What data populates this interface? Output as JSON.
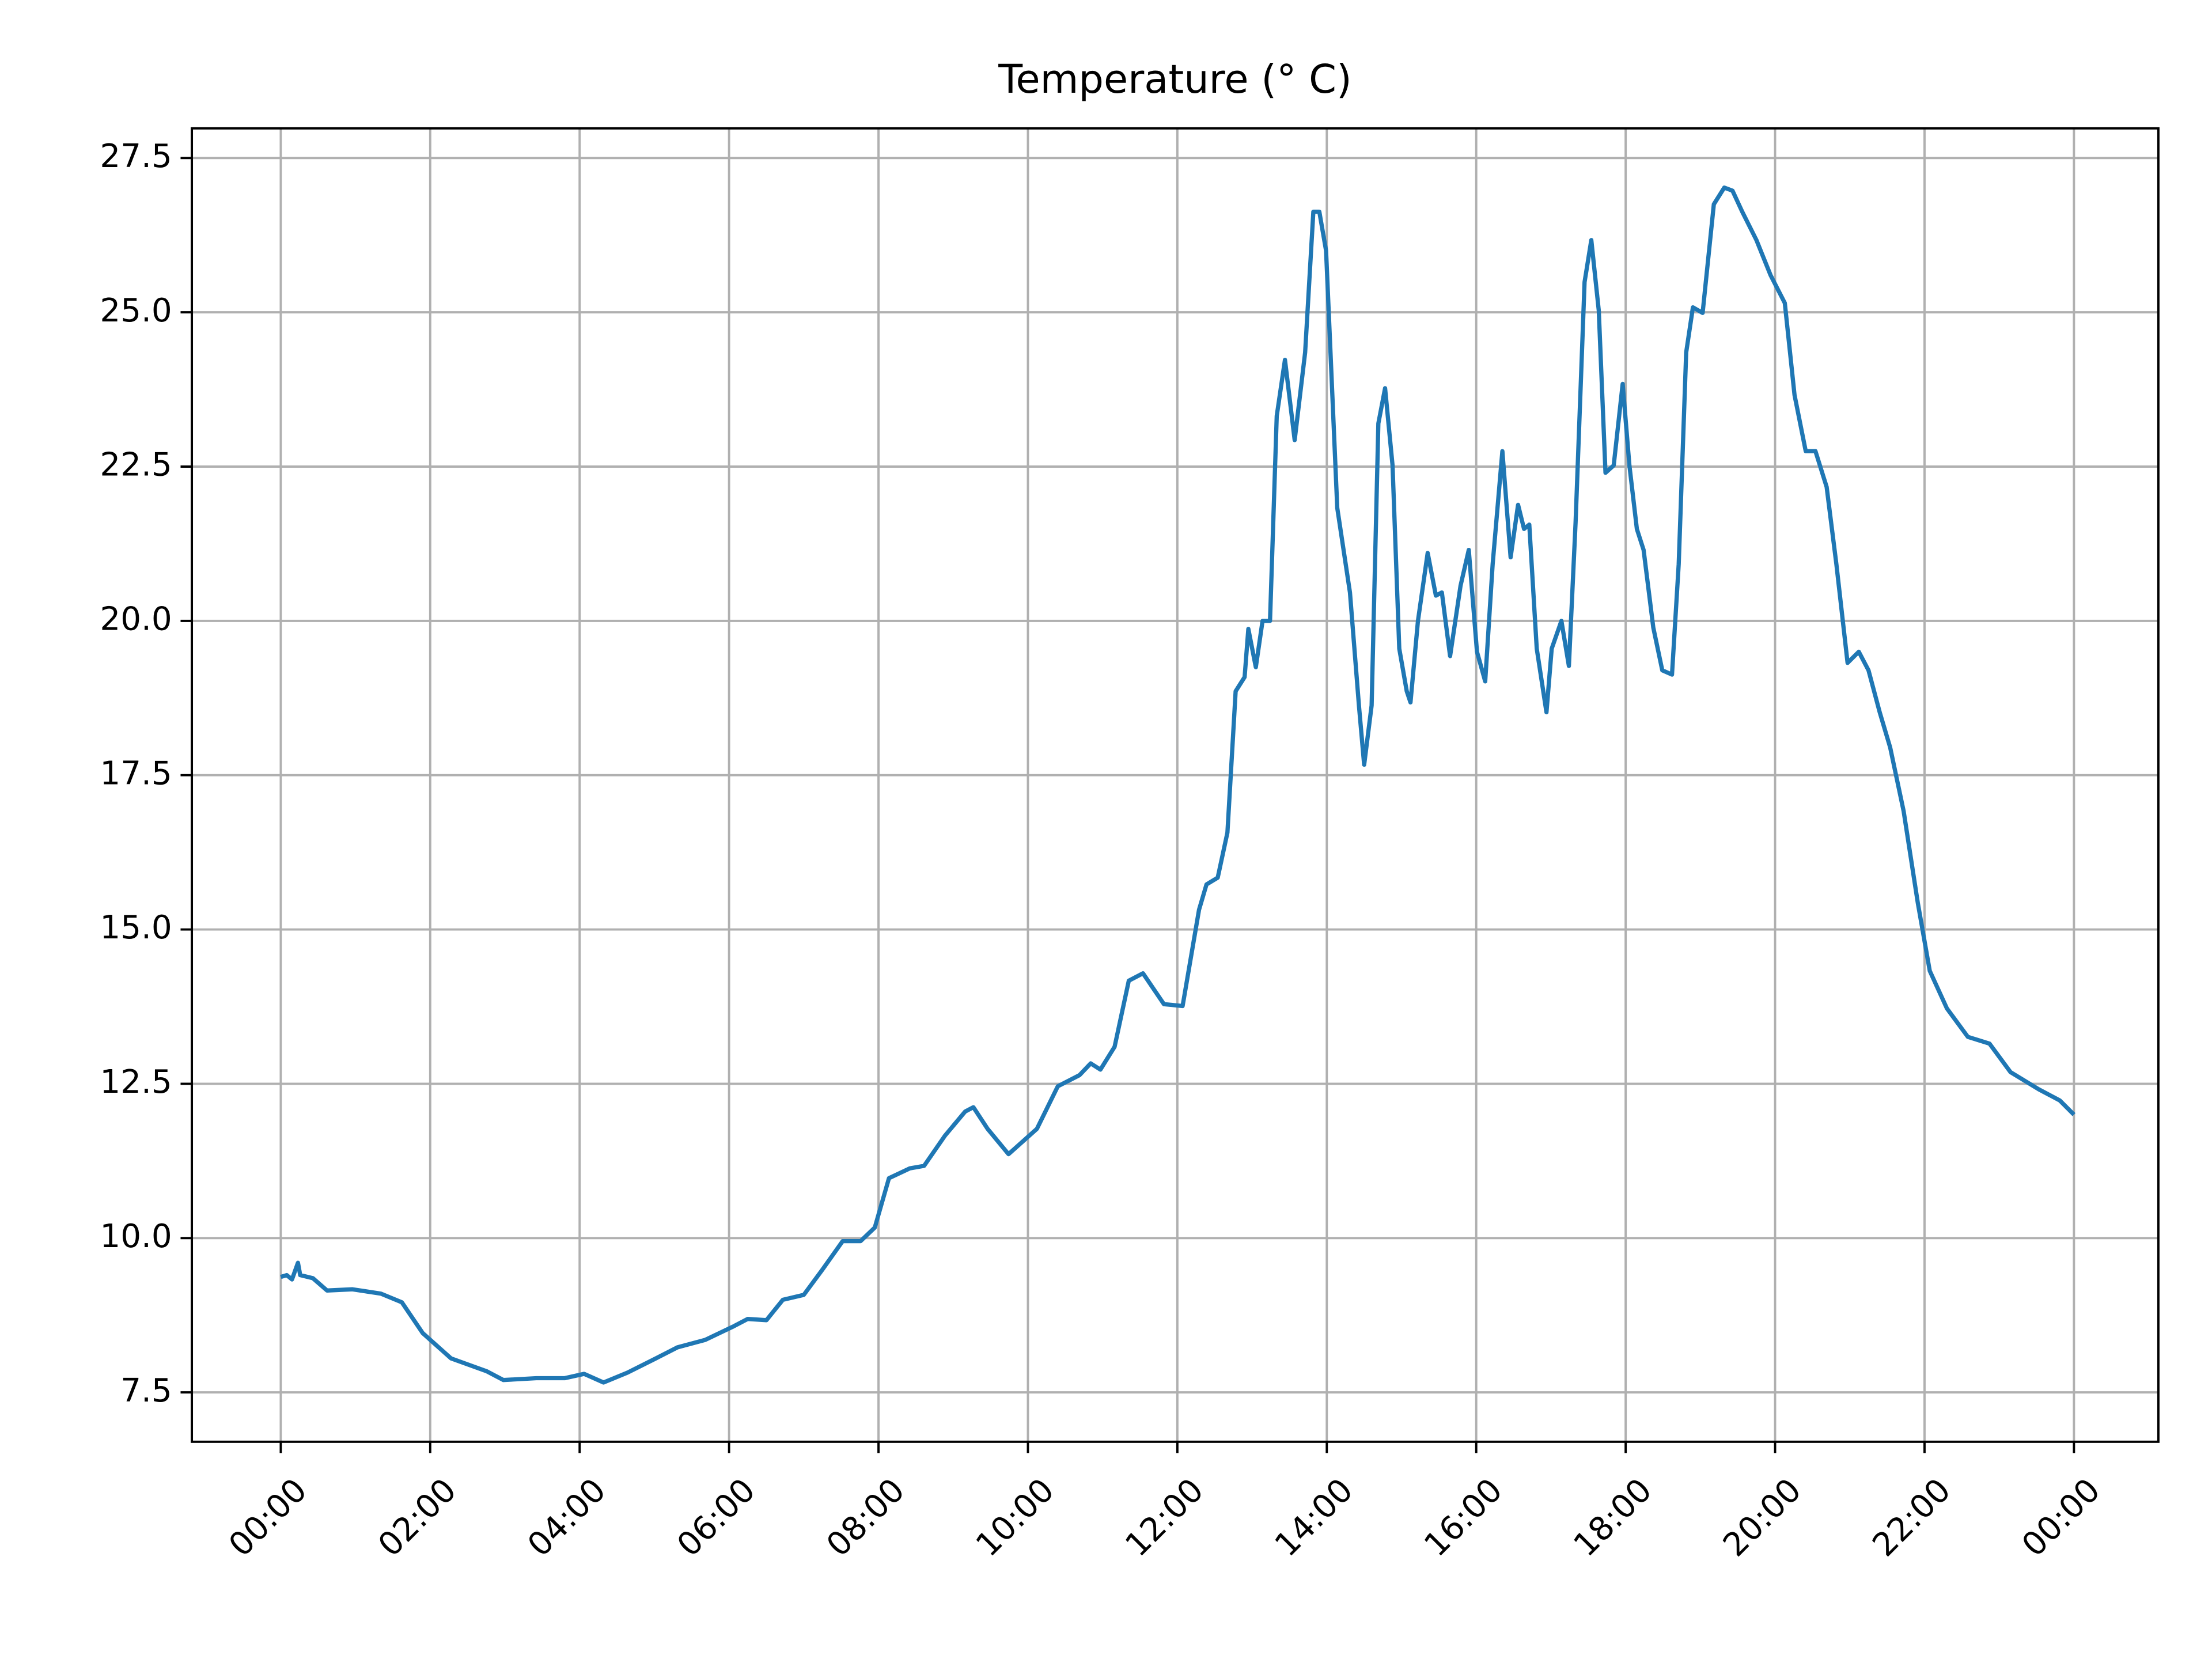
{
  "chart_data": {
    "type": "line",
    "title": "Temperature (° C)",
    "x": [
      0,
      0.08,
      0.15,
      0.23,
      0.26,
      0.43,
      0.62,
      0.96,
      1.34,
      1.62,
      1.9,
      2.28,
      2.76,
      2.98,
      3.42,
      3.8,
      4.06,
      4.32,
      4.64,
      5.02,
      5.31,
      5.68,
      6.06,
      6.25,
      6.5,
      6.72,
      7.0,
      7.25,
      7.52,
      7.76,
      7.95,
      8.14,
      8.42,
      8.61,
      8.89,
      9.16,
      9.27,
      9.46,
      9.74,
      10.12,
      10.4,
      10.69,
      10.84,
      10.97,
      11.16,
      11.35,
      11.54,
      11.82,
      12.07,
      12.29,
      12.39,
      12.54,
      12.67,
      12.78,
      12.9,
      12.95,
      13.05,
      13.14,
      13.24,
      13.33,
      13.44,
      13.57,
      13.71,
      13.82,
      13.9,
      13.99,
      14.14,
      14.31,
      14.43,
      14.5,
      14.6,
      14.69,
      14.78,
      14.88,
      14.97,
      15.07,
      15.12,
      15.22,
      15.35,
      15.46,
      15.54,
      15.65,
      15.79,
      15.9,
      16.01,
      16.12,
      16.22,
      16.35,
      16.46,
      16.56,
      16.64,
      16.71,
      16.81,
      16.94,
      17.01,
      17.14,
      17.24,
      17.33,
      17.45,
      17.54,
      17.64,
      17.73,
      17.84,
      17.96,
      18.05,
      18.15,
      18.24,
      18.37,
      18.49,
      18.62,
      18.71,
      18.81,
      18.9,
      19.03,
      19.18,
      19.32,
      19.43,
      19.56,
      19.75,
      19.94,
      20.13,
      20.26,
      20.41,
      20.54,
      20.69,
      20.82,
      20.97,
      21.12,
      21.25,
      21.4,
      21.54,
      21.72,
      21.91,
      22.07,
      22.3,
      22.58,
      22.87,
      23.15,
      23.53,
      23.81,
      24.0
    ],
    "series": [
      {
        "name": "Temperature",
        "color": "#1f77b4",
        "values": [
          9.37,
          9.4,
          9.33,
          9.6,
          9.4,
          9.35,
          9.15,
          9.17,
          9.1,
          8.96,
          8.46,
          8.05,
          7.84,
          7.7,
          7.73,
          7.73,
          7.8,
          7.66,
          7.82,
          8.05,
          8.23,
          8.35,
          8.57,
          8.69,
          8.67,
          9.0,
          9.08,
          9.49,
          9.95,
          9.95,
          10.17,
          10.97,
          11.13,
          11.17,
          11.66,
          12.05,
          12.12,
          11.77,
          11.36,
          11.77,
          12.46,
          12.64,
          12.83,
          12.73,
          13.1,
          14.17,
          14.29,
          13.79,
          13.76,
          15.32,
          15.73,
          15.84,
          16.57,
          18.86,
          19.09,
          19.87,
          19.25,
          20.0,
          20.0,
          23.32,
          24.23,
          22.93,
          24.35,
          26.63,
          26.63,
          26.0,
          21.83,
          20.46,
          18.63,
          17.67,
          18.63,
          23.2,
          23.77,
          22.52,
          19.55,
          18.86,
          18.68,
          20.0,
          21.1,
          20.41,
          20.46,
          19.43,
          20.57,
          21.15,
          19.5,
          19.02,
          20.92,
          22.75,
          21.03,
          21.88,
          21.49,
          21.56,
          19.55,
          18.52,
          19.55,
          20.0,
          19.27,
          21.6,
          25.49,
          26.17,
          25.03,
          22.4,
          22.52,
          23.84,
          22.52,
          21.49,
          21.15,
          19.89,
          19.2,
          19.13,
          20.92,
          24.35,
          25.08,
          24.99,
          26.75,
          27.02,
          26.97,
          26.63,
          26.17,
          25.6,
          25.15,
          23.66,
          22.75,
          22.75,
          22.17,
          20.92,
          19.32,
          19.5,
          19.2,
          18.52,
          17.95,
          16.92,
          15.43,
          14.33,
          13.72,
          13.26,
          13.15,
          12.69,
          12.41,
          12.23,
          12.0
        ]
      }
    ],
    "xlim": [
      -1.19,
      25.13
    ],
    "ylim": [
      6.7,
      27.98
    ],
    "xticks": [
      {
        "value": 0,
        "label": "00:00"
      },
      {
        "value": 2,
        "label": "02:00"
      },
      {
        "value": 4,
        "label": "04:00"
      },
      {
        "value": 6,
        "label": "06:00"
      },
      {
        "value": 8,
        "label": "08:00"
      },
      {
        "value": 10,
        "label": "10:00"
      },
      {
        "value": 12,
        "label": "12:00"
      },
      {
        "value": 14,
        "label": "14:00"
      },
      {
        "value": 16,
        "label": "16:00"
      },
      {
        "value": 18,
        "label": "18:00"
      },
      {
        "value": 20,
        "label": "20:00"
      },
      {
        "value": 22,
        "label": "22:00"
      },
      {
        "value": 24,
        "label": "00:00"
      }
    ],
    "yticks": [
      7.5,
      {
        "value": 10,
        "label": "10.0"
      },
      12.5,
      {
        "value": 15,
        "label": "15.0"
      },
      17.5,
      {
        "value": 20,
        "label": "20.0"
      },
      22.5,
      {
        "value": 25,
        "label": "25.0"
      },
      27.5
    ],
    "grid": true
  }
}
